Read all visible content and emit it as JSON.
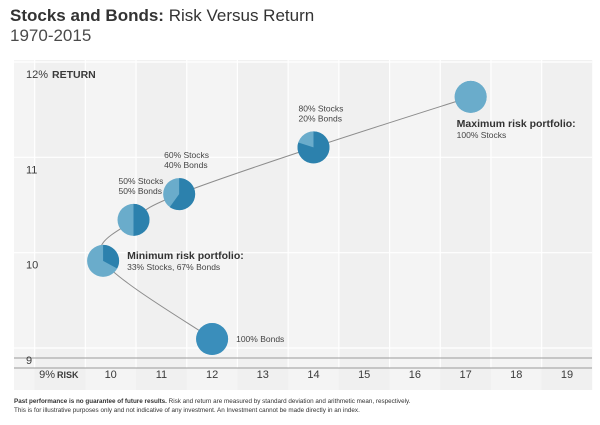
{
  "header": {
    "title_bold": "Stocks and Bonds:",
    "title_rest": " Risk Versus Return",
    "subtitle": "1970-2015"
  },
  "footnote": {
    "bold": "Past performance is no guarantee of future results.",
    "line1_rest": "  Risk and return are measured by standard deviation and arithmetic mean, respectively.",
    "line2": "This is for illustrative purposes only and not indicative of any investment. An Investment cannot be made directly in an index."
  },
  "colors": {
    "grid_band_light": "#f4f4f4",
    "grid_band_dark": "#ebebeb",
    "grid_line": "#ffffff",
    "axis_line": "#9a9a9a",
    "curve": "#8c8c8c",
    "point_dark": "#2c81ad",
    "point_light": "#6aaccb",
    "point_mid": "#4b98bf",
    "bond_point": "#3a8ebb"
  },
  "chart_data": {
    "type": "scatter",
    "title": "Stocks and Bonds: Risk Versus Return",
    "subtitle": "1970-2015",
    "xlabel": "RISK",
    "ylabel": "RETURN",
    "xlim": [
      9,
      19.8
    ],
    "ylim": [
      8.9,
      12.45
    ],
    "x_ticks": [
      {
        "value": 9,
        "label": "9%"
      },
      {
        "value": 10,
        "label": "10"
      },
      {
        "value": 11,
        "label": "11"
      },
      {
        "value": 12,
        "label": "12"
      },
      {
        "value": 13,
        "label": "13"
      },
      {
        "value": 14,
        "label": "14"
      },
      {
        "value": 15,
        "label": "15"
      },
      {
        "value": 16,
        "label": "16"
      },
      {
        "value": 17,
        "label": "17"
      },
      {
        "value": 18,
        "label": "18"
      },
      {
        "value": 19,
        "label": "19"
      }
    ],
    "y_ticks": [
      {
        "value": 9,
        "label": "9"
      },
      {
        "value": 10,
        "label": "10"
      },
      {
        "value": 11,
        "label": "11"
      },
      {
        "value": 12,
        "label": "12%"
      }
    ],
    "points": [
      {
        "x": 12.0,
        "y": 9.22,
        "stocks_pct": 0,
        "label_lines": [
          "100% Bonds"
        ],
        "label_pos": "right",
        "bold_label": ""
      },
      {
        "x": 9.85,
        "y": 10.04,
        "stocks_pct": 33,
        "label_lines": [
          "33% Stocks, 67% Bonds"
        ],
        "label_pos": "right",
        "bold_label": "Minimum risk portfolio:"
      },
      {
        "x": 10.45,
        "y": 10.47,
        "stocks_pct": 50,
        "label_lines": [
          "50% Stocks",
          "50% Bonds"
        ],
        "label_pos": "above",
        "bold_label": ""
      },
      {
        "x": 11.35,
        "y": 10.74,
        "stocks_pct": 60,
        "label_lines": [
          "60% Stocks",
          "40% Bonds"
        ],
        "label_pos": "above",
        "bold_label": ""
      },
      {
        "x": 14.0,
        "y": 11.23,
        "stocks_pct": 80,
        "label_lines": [
          "80% Stocks",
          "20% Bonds"
        ],
        "label_pos": "above",
        "bold_label": ""
      },
      {
        "x": 17.1,
        "y": 11.76,
        "stocks_pct": 100,
        "label_lines": [
          "100% Stocks"
        ],
        "label_pos": "below",
        "bold_label": "Maximum risk portfolio:"
      }
    ],
    "grid": true,
    "legend": "none"
  }
}
